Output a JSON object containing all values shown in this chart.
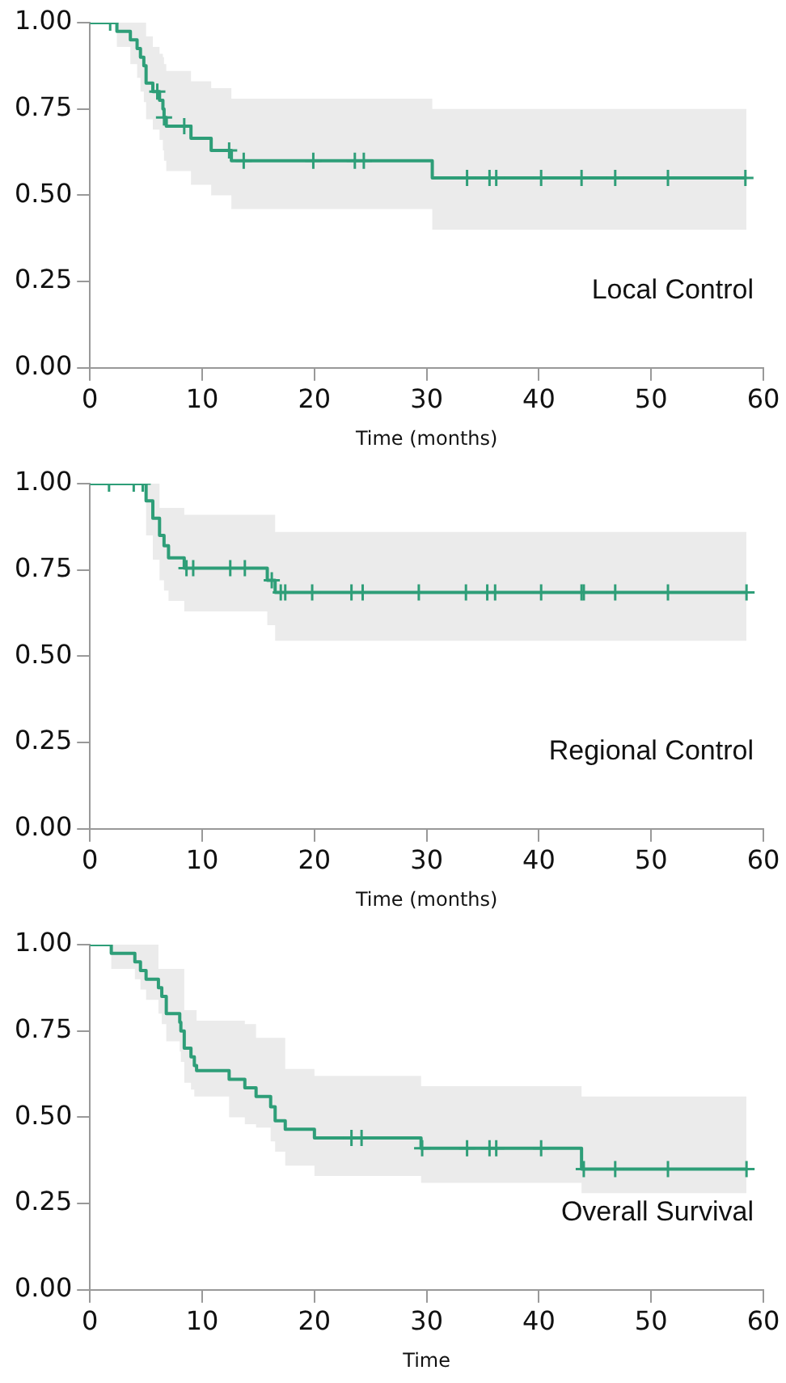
{
  "chart_data": [
    {
      "type": "step",
      "xlabel": "Time (months)",
      "annotations": [
        "Local Control"
      ],
      "xlim": [
        0,
        60
      ],
      "xticks": [
        0,
        10,
        20,
        30,
        40,
        50,
        60
      ],
      "ylim": [
        0,
        1
      ],
      "yticks": [
        {
          "value": 0,
          "label": "0.00"
        },
        {
          "value": 0.25,
          "label": "0.25"
        },
        {
          "value": 0.5,
          "label": "0.50"
        },
        {
          "value": 0.75,
          "label": "0.75"
        },
        {
          "value": 1,
          "label": "1.00"
        }
      ],
      "series": [
        {
          "type": "step",
          "color": "#2e9e78",
          "marker": "none",
          "x": [
            0,
            2.4,
            3.6,
            4.2,
            4.5,
            4.8,
            5.0,
            5.6,
            6.2,
            6.5,
            6.6,
            6.8,
            9.0,
            10.8,
            12.6,
            30.5,
            58.5
          ],
          "values": [
            1,
            0.975,
            0.95,
            0.925,
            0.9,
            0.875,
            0.825,
            0.8,
            0.775,
            0.75,
            0.725,
            0.7,
            0.665,
            0.63,
            0.6,
            0.55,
            0.55
          ],
          "lower": [
            1,
            0.93,
            0.88,
            0.84,
            0.8,
            0.77,
            0.72,
            0.69,
            0.66,
            0.63,
            0.6,
            0.57,
            0.53,
            0.5,
            0.46,
            0.4,
            0.4
          ],
          "upper": [
            1,
            1,
            1,
            1,
            1,
            1,
            0.96,
            0.93,
            0.91,
            0.9,
            0.88,
            0.86,
            0.83,
            0.81,
            0.78,
            0.75,
            0.75
          ]
        },
        {
          "type": "scatter",
          "color": "#2e9e78",
          "marker": "cross",
          "x": [
            1.8,
            6.0,
            6.6,
            8.4,
            12.4,
            13.7,
            19.9,
            23.6,
            24.4,
            33.6,
            35.6,
            36.2,
            40.2,
            43.8,
            46.8,
            51.5,
            58.4
          ],
          "values": [
            1,
            0.8,
            0.725,
            0.7,
            0.63,
            0.6,
            0.6,
            0.6,
            0.6,
            0.55,
            0.55,
            0.55,
            0.55,
            0.55,
            0.55,
            0.55,
            0.55
          ]
        }
      ]
    },
    {
      "type": "step",
      "xlabel": "Time (months)",
      "annotations": [
        "Regional Control"
      ],
      "xlim": [
        0,
        60
      ],
      "xticks": [
        0,
        10,
        20,
        30,
        40,
        50,
        60
      ],
      "ylim": [
        0,
        1
      ],
      "yticks": [
        {
          "value": 0,
          "label": "0.00"
        },
        {
          "value": 0.25,
          "label": "0.25"
        },
        {
          "value": 0.5,
          "label": "0.50"
        },
        {
          "value": 0.75,
          "label": "0.75"
        },
        {
          "value": 1,
          "label": "1.00"
        }
      ],
      "series": [
        {
          "type": "step",
          "color": "#2e9e78",
          "marker": "none",
          "x": [
            0,
            5.0,
            5.6,
            6.2,
            6.6,
            7.0,
            8.4,
            15.8,
            16.5,
            58.5
          ],
          "values": [
            1,
            0.95,
            0.9,
            0.85,
            0.82,
            0.785,
            0.755,
            0.72,
            0.685,
            0.685
          ],
          "lower": [
            1,
            0.85,
            0.78,
            0.72,
            0.69,
            0.66,
            0.63,
            0.59,
            0.545,
            0.545
          ],
          "upper": [
            1,
            1,
            1,
            0.93,
            0.93,
            0.93,
            0.91,
            0.91,
            0.86,
            0.86
          ]
        },
        {
          "type": "scatter",
          "color": "#2e9e78",
          "marker": "cross",
          "x": [
            1.7,
            3.9,
            4.7,
            8.6,
            9.2,
            12.5,
            13.8,
            16.2,
            17.0,
            17.4,
            19.8,
            23.3,
            24.3,
            29.3,
            33.5,
            35.4,
            36.1,
            40.2,
            43.8,
            44.0,
            46.8,
            51.5,
            58.5
          ],
          "values": [
            1,
            1,
            1,
            0.755,
            0.755,
            0.755,
            0.755,
            0.72,
            0.685,
            0.685,
            0.685,
            0.685,
            0.685,
            0.685,
            0.685,
            0.685,
            0.685,
            0.685,
            0.685,
            0.685,
            0.685,
            0.685,
            0.685
          ]
        }
      ]
    },
    {
      "type": "step",
      "xlabel": "Time",
      "annotations": [
        "Overall Survival"
      ],
      "xlim": [
        0,
        60
      ],
      "xticks": [
        0,
        10,
        20,
        30,
        40,
        50,
        60
      ],
      "ylim": [
        0,
        1
      ],
      "yticks": [
        {
          "value": 0,
          "label": "0.00"
        },
        {
          "value": 0.25,
          "label": "0.25"
        },
        {
          "value": 0.5,
          "label": "0.50"
        },
        {
          "value": 0.75,
          "label": "0.75"
        },
        {
          "value": 1,
          "label": "1.00"
        }
      ],
      "series": [
        {
          "type": "step",
          "color": "#2e9e78",
          "marker": "none",
          "x": [
            0,
            1.9,
            4.0,
            4.5,
            5.0,
            6.1,
            6.4,
            6.8,
            8.0,
            8.1,
            8.4,
            9.0,
            9.3,
            9.5,
            12.4,
            13.8,
            14.8,
            16.1,
            16.5,
            17.4,
            20.0,
            29.5,
            43.8,
            58.5
          ],
          "values": [
            1,
            0.975,
            0.95,
            0.925,
            0.9,
            0.875,
            0.85,
            0.8,
            0.775,
            0.75,
            0.7,
            0.675,
            0.65,
            0.635,
            0.61,
            0.585,
            0.56,
            0.53,
            0.49,
            0.465,
            0.44,
            0.41,
            0.35,
            0.35
          ],
          "lower": [
            1,
            0.93,
            0.9,
            0.87,
            0.84,
            0.8,
            0.77,
            0.72,
            0.69,
            0.66,
            0.6,
            0.58,
            0.56,
            0.56,
            0.5,
            0.48,
            0.47,
            0.43,
            0.4,
            0.36,
            0.33,
            0.31,
            0.28,
            0.28
          ],
          "upper": [
            1,
            1,
            1,
            1,
            1,
            0.93,
            0.93,
            0.93,
            0.93,
            0.93,
            0.81,
            0.81,
            0.81,
            0.78,
            0.78,
            0.77,
            0.73,
            0.73,
            0.73,
            0.64,
            0.62,
            0.59,
            0.56,
            0.56
          ]
        },
        {
          "type": "scatter",
          "color": "#2e9e78",
          "marker": "cross",
          "x": [
            23.3,
            24.2,
            29.6,
            33.6,
            35.6,
            36.2,
            40.2,
            44.0,
            46.8,
            51.5,
            58.5
          ],
          "values": [
            0.44,
            0.44,
            0.41,
            0.41,
            0.41,
            0.41,
            0.41,
            0.35,
            0.35,
            0.35,
            0.35
          ]
        }
      ]
    }
  ]
}
